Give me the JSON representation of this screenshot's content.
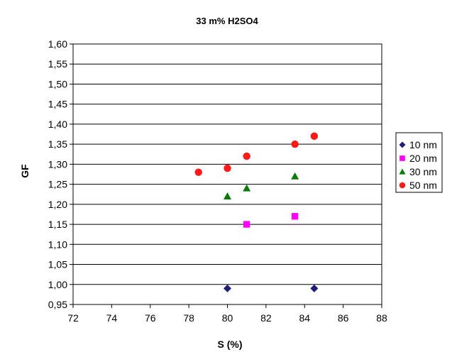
{
  "chart_data": {
    "type": "scatter",
    "title": "33 m% H2SO4",
    "xlabel": "S (%)",
    "ylabel": "GF",
    "xlim": [
      72,
      88
    ],
    "ylim": [
      0.95,
      1.6
    ],
    "x_ticks": [
      "72",
      "74",
      "76",
      "78",
      "80",
      "82",
      "84",
      "86",
      "88"
    ],
    "y_ticks": [
      "0,95",
      "1,00",
      "1,05",
      "1,10",
      "1,15",
      "1,20",
      "1,25",
      "1,30",
      "1,35",
      "1,40",
      "1,45",
      "1,50",
      "1,55",
      "1,60"
    ],
    "grid": "horizontal",
    "legend_position": "right",
    "series": [
      {
        "name": "10 nm",
        "marker": "diamond",
        "color": "#1f1f7a",
        "points": [
          [
            80.0,
            0.99
          ],
          [
            84.5,
            0.99
          ]
        ]
      },
      {
        "name": "20 nm",
        "marker": "square",
        "color": "#ff00ff",
        "points": [
          [
            81.0,
            1.15
          ],
          [
            83.5,
            1.17
          ]
        ]
      },
      {
        "name": "30 nm",
        "marker": "triangle",
        "color": "#0a7a0a",
        "points": [
          [
            80.0,
            1.22
          ],
          [
            81.0,
            1.24
          ],
          [
            83.5,
            1.27
          ]
        ]
      },
      {
        "name": "50 nm",
        "marker": "circle",
        "color": "#ff1a1a",
        "points": [
          [
            78.5,
            1.28
          ],
          [
            80.0,
            1.29
          ],
          [
            81.0,
            1.32
          ],
          [
            83.5,
            1.35
          ],
          [
            84.5,
            1.37
          ]
        ]
      }
    ]
  }
}
